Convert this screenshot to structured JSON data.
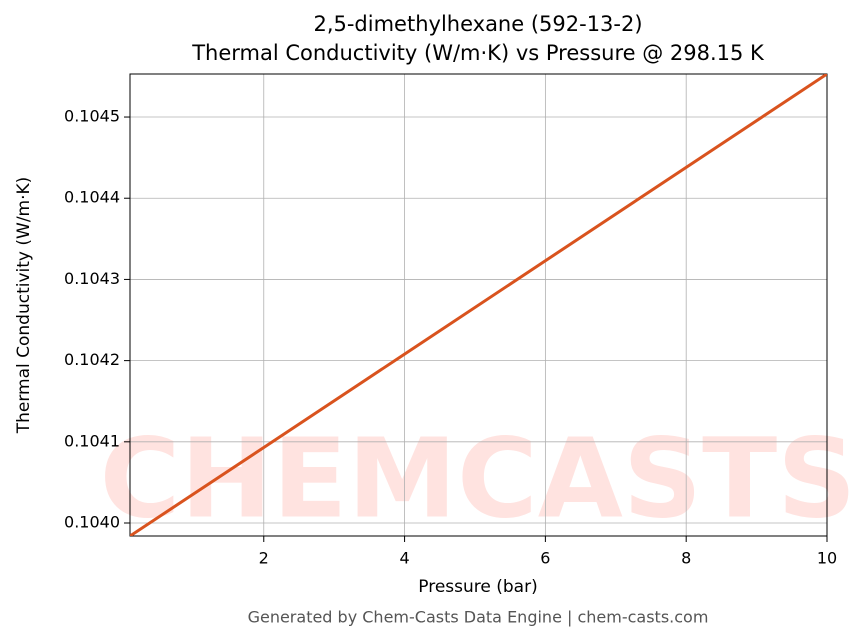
{
  "chart_data": {
    "type": "line",
    "title": "2,5-dimethylhexane (592-13-2)",
    "subtitle": "Thermal Conductivity (W/m·K) vs Pressure @ 298.15 K",
    "x_label": "Pressure (bar)",
    "y_label": "Thermal Conductivity (W/m·K)",
    "footer": "Generated by Chem-Casts Data Engine | chem-casts.com",
    "watermark": "CHEMCASTS",
    "x": [
      0.1,
      2,
      4,
      6,
      8,
      10
    ],
    "series": [
      {
        "name": "Thermal Conductivity",
        "color": "#d9531e",
        "values": [
          0.103984,
          0.104093,
          0.104208,
          0.104323,
          0.104438,
          0.104553
        ]
      }
    ],
    "xlim": [
      0.1,
      10
    ],
    "ylim": [
      0.103984,
      0.104553
    ],
    "xticks": [
      2,
      4,
      6,
      8,
      10
    ],
    "yticks": [
      {
        "value": 0.104,
        "label": "0.1040"
      },
      {
        "value": 0.1041,
        "label": "0.1041"
      },
      {
        "value": 0.1042,
        "label": "0.1042"
      },
      {
        "value": 0.1043,
        "label": "0.1043"
      },
      {
        "value": 0.1044,
        "label": "0.1044"
      },
      {
        "value": 0.1045,
        "label": "0.1045"
      }
    ],
    "grid": true
  }
}
